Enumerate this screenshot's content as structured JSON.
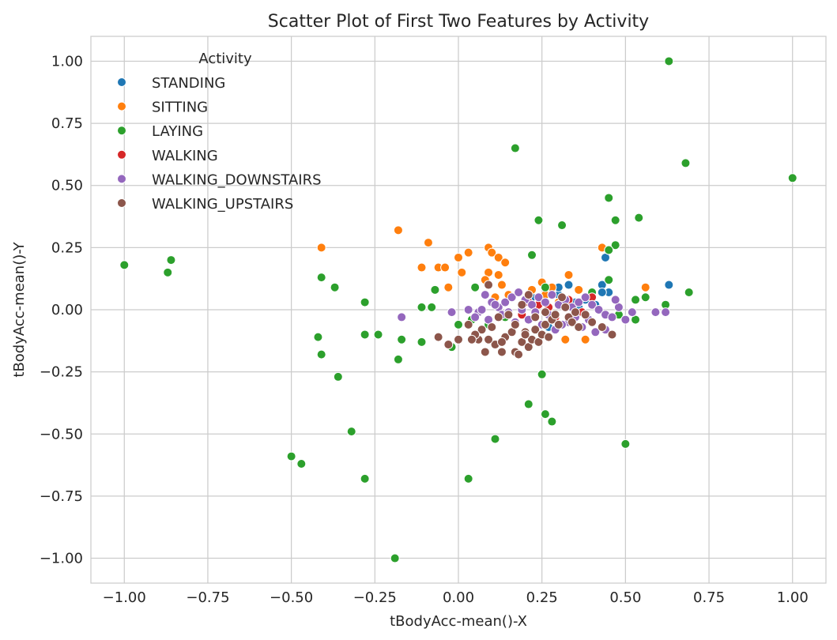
{
  "chart_data": {
    "type": "scatter",
    "title": "Scatter Plot of First Two Features by Activity",
    "xlabel": "tBodyAcc-mean()-X",
    "ylabel": "tBodyAcc-mean()-Y",
    "xlim": [
      -1.1,
      1.1
    ],
    "ylim": [
      -1.1,
      1.1
    ],
    "x_ticks": [
      -1.0,
      -0.75,
      -0.5,
      -0.25,
      0.0,
      0.25,
      0.5,
      0.75,
      1.0
    ],
    "x_tick_labels": [
      "−1.00",
      "−0.75",
      "−0.50",
      "−0.25",
      "0.00",
      "0.25",
      "0.50",
      "0.75",
      "1.00"
    ],
    "y_ticks": [
      1.0,
      0.75,
      0.5,
      0.25,
      0.0,
      -0.25,
      -0.5,
      -0.75,
      -1.0
    ],
    "y_tick_labels": [
      "1.00",
      "0.75",
      "0.50",
      "0.25",
      "0.00",
      "−0.25",
      "−0.50",
      "−0.75",
      "−1.00"
    ],
    "grid": true,
    "legend": {
      "title": "Activity",
      "placement": "upper-left"
    },
    "series": [
      {
        "name": "STANDING",
        "color": "#1f77b4",
        "points": [
          [
            0.44,
            0.21
          ],
          [
            0.43,
            0.1
          ],
          [
            0.45,
            0.07
          ],
          [
            0.63,
            0.1
          ],
          [
            0.33,
            0.1
          ],
          [
            0.3,
            0.06
          ],
          [
            0.38,
            0.04
          ],
          [
            0.41,
            0.02
          ],
          [
            0.36,
            0.01
          ],
          [
            0.27,
            -0.07
          ],
          [
            0.3,
            0.09
          ],
          [
            0.4,
            0.06
          ],
          [
            0.22,
            0.05
          ],
          [
            0.35,
            0.03
          ],
          [
            0.43,
            0.07
          ]
        ]
      },
      {
        "name": "SITTING",
        "color": "#ff7f0e",
        "points": [
          [
            -0.18,
            0.32
          ],
          [
            -0.41,
            0.25
          ],
          [
            -0.09,
            0.27
          ],
          [
            -0.11,
            0.17
          ],
          [
            -0.06,
            0.17
          ],
          [
            -0.04,
            0.17
          ],
          [
            0.0,
            0.21
          ],
          [
            0.03,
            0.23
          ],
          [
            0.09,
            0.25
          ],
          [
            0.1,
            0.23
          ],
          [
            0.12,
            0.21
          ],
          [
            0.14,
            0.19
          ],
          [
            0.01,
            0.15
          ],
          [
            0.09,
            0.15
          ],
          [
            0.12,
            0.14
          ],
          [
            -0.03,
            0.09
          ],
          [
            0.08,
            0.12
          ],
          [
            0.13,
            0.1
          ],
          [
            0.33,
            0.14
          ],
          [
            0.43,
            0.25
          ],
          [
            0.56,
            0.09
          ],
          [
            0.18,
            0.07
          ],
          [
            0.25,
            0.11
          ],
          [
            0.28,
            0.09
          ],
          [
            0.36,
            0.08
          ],
          [
            0.15,
            0.06
          ],
          [
            0.22,
            0.08
          ],
          [
            0.32,
            -0.12
          ],
          [
            0.38,
            -0.12
          ],
          [
            0.11,
            0.05
          ],
          [
            0.2,
            0.04
          ],
          [
            0.26,
            0.06
          ],
          [
            0.3,
            0.03
          ]
        ]
      },
      {
        "name": "LAYING",
        "color": "#2ca02c",
        "points": [
          [
            0.63,
            1.0
          ],
          [
            0.17,
            0.65
          ],
          [
            0.68,
            0.59
          ],
          [
            1.0,
            0.53
          ],
          [
            0.45,
            0.45
          ],
          [
            0.54,
            0.37
          ],
          [
            0.24,
            0.36
          ],
          [
            0.31,
            0.34
          ],
          [
            0.47,
            0.36
          ],
          [
            0.47,
            0.26
          ],
          [
            0.45,
            0.24
          ],
          [
            0.22,
            0.22
          ],
          [
            -1.0,
            0.18
          ],
          [
            -0.86,
            0.2
          ],
          [
            -0.87,
            0.15
          ],
          [
            -0.41,
            0.13
          ],
          [
            -0.37,
            0.09
          ],
          [
            -0.28,
            0.03
          ],
          [
            0.45,
            0.12
          ],
          [
            -0.11,
            0.01
          ],
          [
            -0.08,
            0.01
          ],
          [
            -0.07,
            0.08
          ],
          [
            0.05,
            0.09
          ],
          [
            0.26,
            0.09
          ],
          [
            0.4,
            0.07
          ],
          [
            0.53,
            0.04
          ],
          [
            0.56,
            0.05
          ],
          [
            0.69,
            0.07
          ],
          [
            0.62,
            0.02
          ],
          [
            0.53,
            -0.04
          ],
          [
            0.48,
            -0.02
          ],
          [
            -0.42,
            -0.11
          ],
          [
            -0.28,
            -0.1
          ],
          [
            -0.24,
            -0.1
          ],
          [
            -0.17,
            -0.12
          ],
          [
            -0.11,
            -0.13
          ],
          [
            -0.02,
            -0.15
          ],
          [
            0.0,
            -0.06
          ],
          [
            -0.18,
            -0.2
          ],
          [
            -0.41,
            -0.18
          ],
          [
            -0.36,
            -0.27
          ],
          [
            0.25,
            -0.26
          ],
          [
            0.21,
            -0.38
          ],
          [
            0.26,
            -0.42
          ],
          [
            0.28,
            -0.45
          ],
          [
            0.11,
            -0.52
          ],
          [
            -0.32,
            -0.49
          ],
          [
            -0.5,
            -0.59
          ],
          [
            -0.47,
            -0.62
          ],
          [
            -0.28,
            -0.68
          ],
          [
            0.03,
            -0.68
          ],
          [
            0.5,
            -0.54
          ],
          [
            -0.19,
            -1.0
          ],
          [
            0.04,
            -0.04
          ],
          [
            0.09,
            -0.06
          ],
          [
            0.14,
            -0.03
          ]
        ]
      },
      {
        "name": "WALKING",
        "color": "#d62728",
        "points": [
          [
            0.19,
            -0.02
          ],
          [
            0.24,
            0.02
          ],
          [
            0.29,
            -0.03
          ],
          [
            0.33,
            0.04
          ],
          [
            0.37,
            -0.01
          ],
          [
            0.4,
            0.05
          ],
          [
            0.21,
            0.03
          ],
          [
            0.27,
            0.01
          ]
        ]
      },
      {
        "name": "WALKING_DOWNSTAIRS",
        "color": "#9467bd",
        "points": [
          [
            -0.17,
            -0.03
          ],
          [
            -0.02,
            -0.01
          ],
          [
            0.03,
            0.0
          ],
          [
            0.06,
            -0.01
          ],
          [
            0.08,
            0.06
          ],
          [
            0.1,
            0.03
          ],
          [
            0.12,
            0.01
          ],
          [
            0.14,
            0.03
          ],
          [
            0.16,
            0.05
          ],
          [
            0.18,
            0.07
          ],
          [
            0.2,
            0.04
          ],
          [
            0.22,
            0.02
          ],
          [
            0.24,
            0.05
          ],
          [
            0.26,
            0.03
          ],
          [
            0.28,
            0.06
          ],
          [
            0.3,
            0.02
          ],
          [
            0.32,
            0.04
          ],
          [
            0.34,
            0.01
          ],
          [
            0.36,
            0.03
          ],
          [
            0.38,
            0.05
          ],
          [
            0.4,
            0.02
          ],
          [
            0.42,
            0.0
          ],
          [
            0.44,
            -0.02
          ],
          [
            0.46,
            -0.03
          ],
          [
            0.48,
            0.01
          ],
          [
            0.5,
            -0.04
          ],
          [
            0.52,
            -0.01
          ],
          [
            0.59,
            -0.01
          ],
          [
            0.62,
            -0.01
          ],
          [
            0.47,
            0.04
          ],
          [
            0.41,
            -0.09
          ],
          [
            0.37,
            -0.07
          ],
          [
            0.33,
            -0.05
          ],
          [
            0.29,
            -0.08
          ],
          [
            0.25,
            -0.06
          ],
          [
            0.21,
            -0.04
          ],
          [
            0.17,
            -0.05
          ],
          [
            0.13,
            -0.02
          ],
          [
            0.09,
            -0.04
          ],
          [
            0.05,
            -0.03
          ],
          [
            0.44,
            -0.08
          ],
          [
            0.39,
            -0.04
          ],
          [
            0.35,
            -0.03
          ],
          [
            0.31,
            -0.06
          ],
          [
            0.27,
            -0.02
          ],
          [
            0.23,
            -0.01
          ],
          [
            0.19,
            0.0
          ],
          [
            0.15,
            -0.01
          ],
          [
            0.11,
            0.02
          ],
          [
            0.07,
            0.0
          ]
        ]
      },
      {
        "name": "WALKING_UPSTAIRS",
        "color": "#8c564b",
        "points": [
          [
            -0.06,
            -0.11
          ],
          [
            -0.03,
            -0.14
          ],
          [
            0.0,
            -0.12
          ],
          [
            0.03,
            -0.06
          ],
          [
            0.06,
            -0.12
          ],
          [
            0.08,
            -0.17
          ],
          [
            0.09,
            0.1
          ],
          [
            0.11,
            -0.14
          ],
          [
            0.13,
            -0.17
          ],
          [
            0.14,
            -0.11
          ],
          [
            0.16,
            -0.09
          ],
          [
            0.17,
            -0.17
          ],
          [
            0.18,
            -0.18
          ],
          [
            0.19,
            -0.13
          ],
          [
            0.2,
            -0.09
          ],
          [
            0.21,
            -0.15
          ],
          [
            0.22,
            -0.12
          ],
          [
            0.23,
            -0.08
          ],
          [
            0.24,
            -0.13
          ],
          [
            0.25,
            -0.1
          ],
          [
            0.26,
            -0.06
          ],
          [
            0.27,
            -0.11
          ],
          [
            0.28,
            -0.04
          ],
          [
            0.29,
            -0.02
          ],
          [
            0.3,
            -0.06
          ],
          [
            0.31,
            0.05
          ],
          [
            0.32,
            0.01
          ],
          [
            0.33,
            -0.03
          ],
          [
            0.34,
            -0.05
          ],
          [
            0.35,
            -0.01
          ],
          [
            0.36,
            -0.07
          ],
          [
            0.38,
            -0.02
          ],
          [
            0.4,
            -0.05
          ],
          [
            0.43,
            -0.07
          ],
          [
            0.46,
            -0.1
          ],
          [
            0.19,
            0.02
          ],
          [
            0.21,
            0.06
          ],
          [
            0.15,
            -0.02
          ],
          [
            0.12,
            -0.03
          ],
          [
            0.1,
            -0.07
          ],
          [
            0.07,
            -0.08
          ],
          [
            0.05,
            -0.1
          ],
          [
            0.17,
            -0.06
          ],
          [
            0.23,
            -0.03
          ],
          [
            0.26,
            -0.01
          ],
          [
            0.13,
            -0.13
          ],
          [
            0.09,
            -0.12
          ],
          [
            0.04,
            -0.12
          ],
          [
            0.2,
            -0.1
          ]
        ]
      }
    ]
  }
}
